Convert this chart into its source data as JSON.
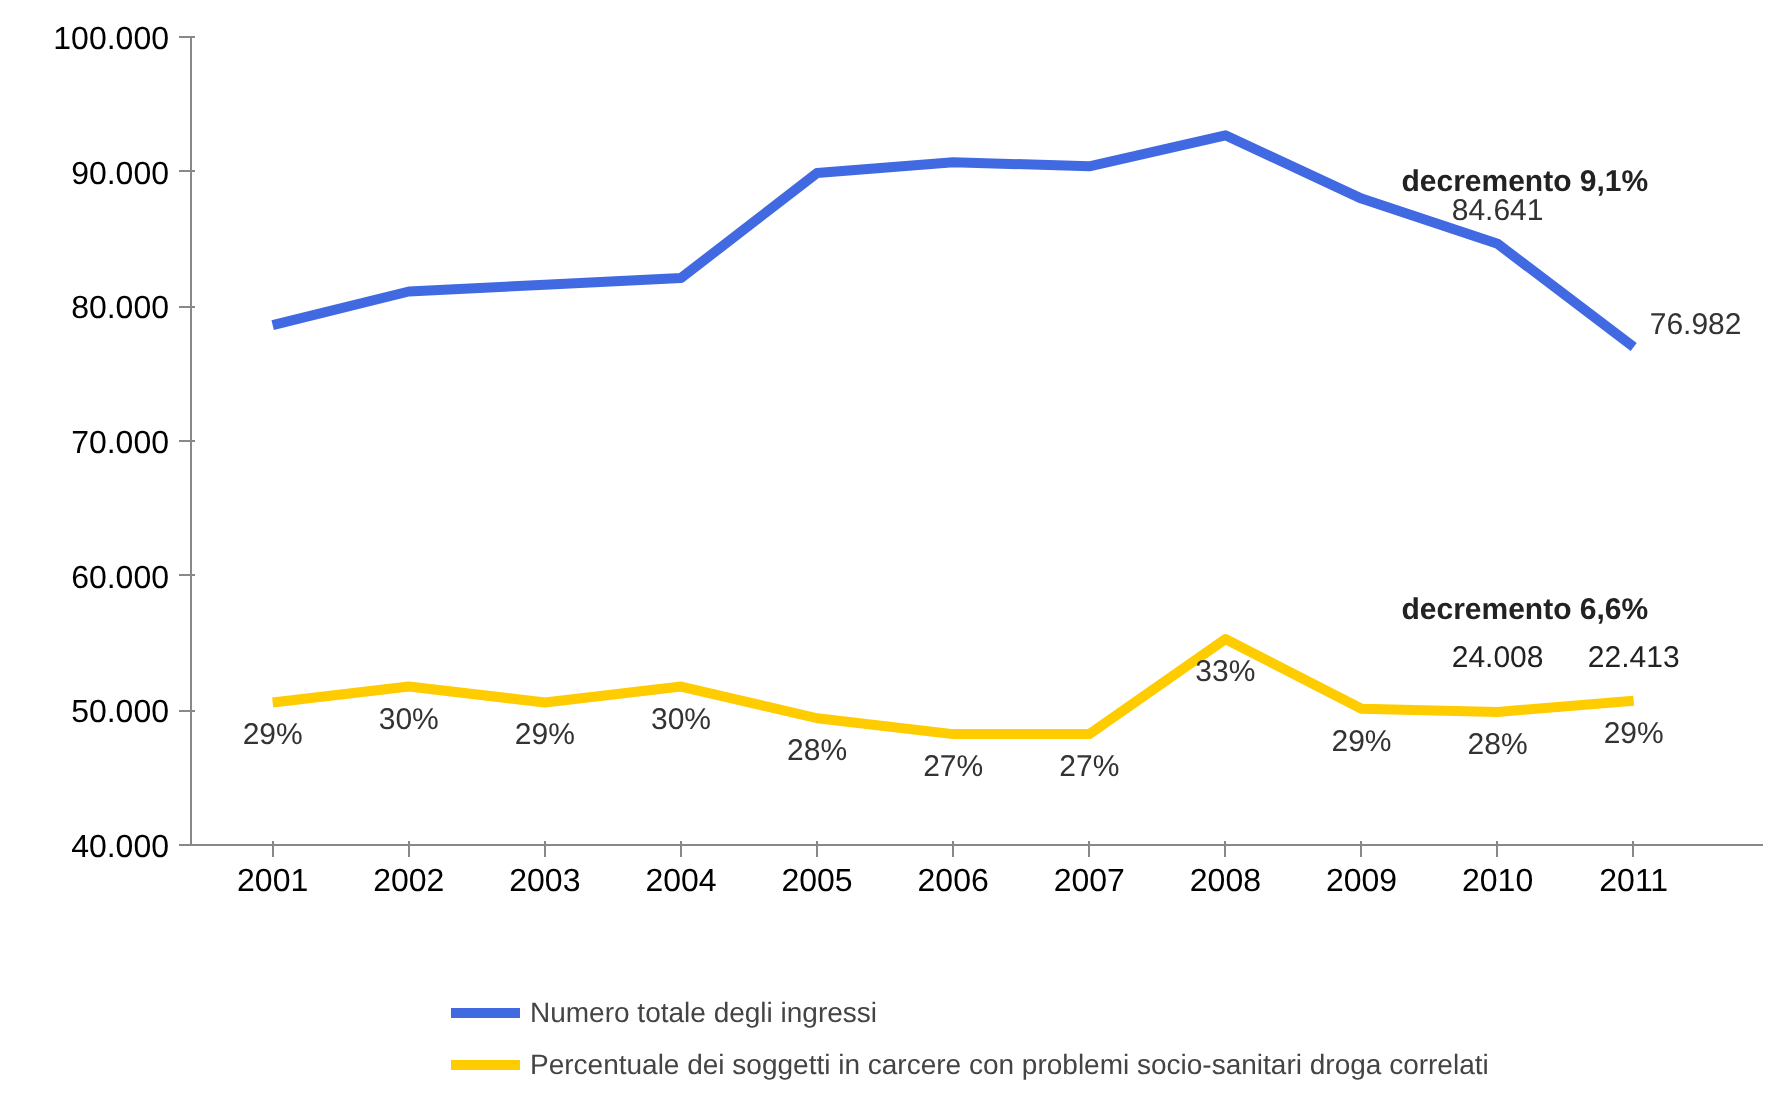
{
  "chart_data": {
    "type": "line",
    "categories": [
      "2001",
      "2002",
      "2003",
      "2004",
      "2005",
      "2006",
      "2007",
      "2008",
      "2009",
      "2010",
      "2011"
    ],
    "series": [
      {
        "name": "Numero totale degli ingressi",
        "color": "#4169e1",
        "values": [
          78600,
          81100,
          81600,
          82100,
          89900,
          90700,
          90400,
          92700,
          88000,
          84641,
          76982
        ],
        "value_labels": [
          null,
          null,
          null,
          null,
          null,
          null,
          null,
          null,
          null,
          "84.641",
          "76.982"
        ]
      },
      {
        "name": "Percentuale dei soggetti in carcere con problemi socio-sanitari droga correlati",
        "color": "#ffcc00",
        "axis": "y2",
        "values": [
          29,
          30,
          29,
          30,
          28,
          27,
          27,
          33,
          28.6,
          28.4,
          29.1
        ],
        "value_labels": [
          "29%",
          "30%",
          "29%",
          "30%",
          "28%",
          "27%",
          "27%",
          "33%",
          "29%",
          "28%",
          "29%"
        ]
      }
    ],
    "y2lim": [
      20,
      71
    ],
    "ylim": [
      40000,
      100000
    ],
    "yticks": [
      {
        "value": 40000,
        "label": "40.000"
      },
      {
        "value": 50000,
        "label": "50.000"
      },
      {
        "value": 60000,
        "label": "60.000"
      },
      {
        "value": 70000,
        "label": "70.000"
      },
      {
        "value": 80000,
        "label": "80.000"
      },
      {
        "value": 90000,
        "label": "90.000"
      },
      {
        "value": 100000,
        "label": "100.000"
      }
    ],
    "annotations": [
      "decremento 9,1%",
      "decremento 6,6%",
      "24.008",
      "22.413"
    ],
    "grid": false,
    "legend": "bottom",
    "marker": "none",
    "line_style": "solid"
  }
}
